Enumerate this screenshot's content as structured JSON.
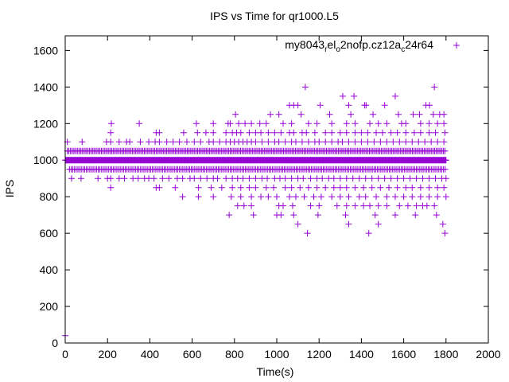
{
  "chart_data": {
    "type": "scatter",
    "title": "IPS vs Time for qr1000.L5",
    "xlabel": "Time(s)",
    "ylabel": "IPS",
    "xlim": [
      0,
      2000
    ],
    "ylim": [
      0,
      1680
    ],
    "x_ticks": [
      0,
      200,
      400,
      600,
      800,
      1000,
      1200,
      1400,
      1600,
      1800,
      2000
    ],
    "y_ticks": [
      0,
      200,
      400,
      600,
      800,
      1000,
      1200,
      1400,
      1600
    ],
    "grid": false,
    "legend": {
      "label": "my8043_rel_o2nofp.cz12a_c24r64",
      "placement": "top-right",
      "marker": "plus"
    },
    "series_color": "#9400D3",
    "marker": "plus",
    "series": [
      {
        "name": "my8043_rel_o2nofp.cz12a_c24r64",
        "dense_bands": [
          {
            "ips": 1000,
            "t_start": 0,
            "t_end": 1800,
            "t_step": 3
          },
          {
            "ips": 1050,
            "t_start": 10,
            "t_end": 1800,
            "t_step": 7
          },
          {
            "ips": 950,
            "t_start": 20,
            "t_end": 1800,
            "t_step": 8
          }
        ],
        "points_by_level": [
          {
            "ips": 40,
            "t": [
              0
            ]
          },
          {
            "ips": 1400,
            "t": [
              1135,
              1745
            ]
          },
          {
            "ips": 1350,
            "t": [
              1312,
              1365,
              1560
            ]
          },
          {
            "ips": 1300,
            "t": [
              1060,
              1080,
              1100,
              1205,
              1340,
              1415,
              1422,
              1510,
              1705,
              1722
            ]
          },
          {
            "ips": 1250,
            "t": [
              805,
              970,
              1010,
              1115,
              1250,
              1350,
              1455,
              1575,
              1645,
              1675,
              1740,
              1770,
              1790
            ]
          },
          {
            "ips": 1200,
            "t": [
              218,
              350,
              620,
              700,
              770,
              780,
              820,
              850,
              880,
              920,
              950,
              1030,
              1070,
              1150,
              1190,
              1260,
              1330,
              1370,
              1440,
              1480,
              1520,
              1590,
              1610,
              1680,
              1720,
              1760,
              1790
            ]
          },
          {
            "ips": 1150,
            "t": [
              215,
              430,
              445,
              560,
              625,
              665,
              700,
              760,
              790,
              810,
              830,
              870,
              900,
              925,
              960,
              990,
              1020,
              1060,
              1080,
              1120,
              1140,
              1180,
              1230,
              1260,
              1300,
              1330,
              1370,
              1400,
              1430,
              1470,
              1500,
              1540,
              1570,
              1610,
              1650,
              1680,
              1720,
              1750,
              1795
            ]
          },
          {
            "ips": 1100,
            "t": [
              10,
              80,
              195,
              215,
              255,
              290,
              305,
              355,
              395,
              425,
              445,
              480,
              510,
              540,
              575,
              610,
              640,
              680,
              700,
              730,
              760,
              780,
              800,
              820,
              840,
              860,
              880,
              900,
              930,
              960,
              990,
              1010,
              1040,
              1070,
              1090,
              1120,
              1150,
              1180,
              1200,
              1230,
              1260,
              1290,
              1310,
              1340,
              1370,
              1400,
              1430,
              1460,
              1490,
              1520,
              1550,
              1580,
              1610,
              1640,
              1670,
              1700,
              1730,
              1760,
              1790
            ]
          },
          {
            "ips": 900,
            "t": [
              30,
              75,
              155,
              200,
              215,
              255,
              280,
              320,
              345,
              375,
              395,
              420,
              460,
              490,
              530,
              555,
              590,
              610,
              640,
              670,
              700,
              720,
              760,
              790,
              815,
              840,
              870,
              900,
              930,
              955,
              990,
              1015,
              1040,
              1070,
              1100,
              1125,
              1160,
              1190,
              1215,
              1245,
              1270,
              1300,
              1330,
              1360,
              1390,
              1420,
              1450,
              1480,
              1510,
              1540,
              1570,
              1600,
              1630,
              1660,
              1690,
              1720,
              1750,
              1780,
              1800
            ]
          },
          {
            "ips": 850,
            "t": [
              215,
              430,
              445,
              520,
              630,
              690,
              740,
              790,
              830,
              870,
              900,
              950,
              985,
              1040,
              1070,
              1110,
              1150,
              1190,
              1230,
              1270,
              1300,
              1330,
              1370,
              1410,
              1450,
              1490,
              1530,
              1570,
              1610,
              1640,
              1680,
              1720,
              1760,
              1790
            ]
          },
          {
            "ips": 800,
            "t": [
              555,
              630,
              700,
              785,
              830,
              880,
              925,
              960,
              1000,
              1060,
              1090,
              1130,
              1175,
              1210,
              1260,
              1300,
              1340,
              1390,
              1420,
              1470,
              1520,
              1560,
              1600,
              1640,
              1680,
              1720,
              1760,
              1800
            ]
          },
          {
            "ips": 750,
            "t": [
              815,
              845,
              880,
              1010,
              1030,
              1075,
              1160,
              1200,
              1285,
              1330,
              1370,
              1410,
              1440,
              1480,
              1520,
              1580,
              1620,
              1660,
              1690,
              1710,
              1745
            ]
          },
          {
            "ips": 700,
            "t": [
              775,
              890,
              1000,
              1020,
              1080,
              1195,
              1325,
              1465,
              1560,
              1655,
              1755
            ]
          },
          {
            "ips": 650,
            "t": [
              1100,
              1340,
              1480,
              1785
            ]
          },
          {
            "ips": 600,
            "t": [
              1145,
              1435,
              1795
            ]
          }
        ]
      }
    ]
  }
}
